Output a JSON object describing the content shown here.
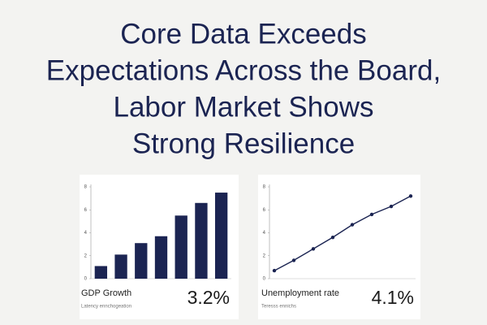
{
  "title_lines": [
    "Core Data Exceeds",
    "Expectations Across the Board,",
    "Labor Market Shows",
    "Strong Resilience"
  ],
  "chart_data": [
    {
      "type": "bar",
      "name": "GDP Growth",
      "kpi": "3.2%",
      "note": "Latency ennchogeation",
      "categories": [
        null,
        null,
        null,
        null,
        null,
        null,
        null
      ],
      "values": [
        1.1,
        2.1,
        3.1,
        3.7,
        5.5,
        6.6,
        7.5
      ],
      "color": "#1b2452",
      "ylim": [
        0,
        8
      ],
      "yticks": [
        0,
        2,
        4,
        6,
        8
      ]
    },
    {
      "type": "line",
      "name": "Unemployment rate",
      "kpi": "4.1%",
      "note": "Teresss ennichs",
      "categories": [
        null,
        null,
        null,
        null,
        null,
        null,
        null,
        null
      ],
      "values": [
        0.7,
        1.6,
        2.6,
        3.6,
        4.7,
        5.6,
        6.3,
        7.2
      ],
      "color": "#1b2452",
      "ylim": [
        0,
        8
      ],
      "yticks": [
        0,
        2,
        4,
        6,
        8
      ]
    }
  ]
}
